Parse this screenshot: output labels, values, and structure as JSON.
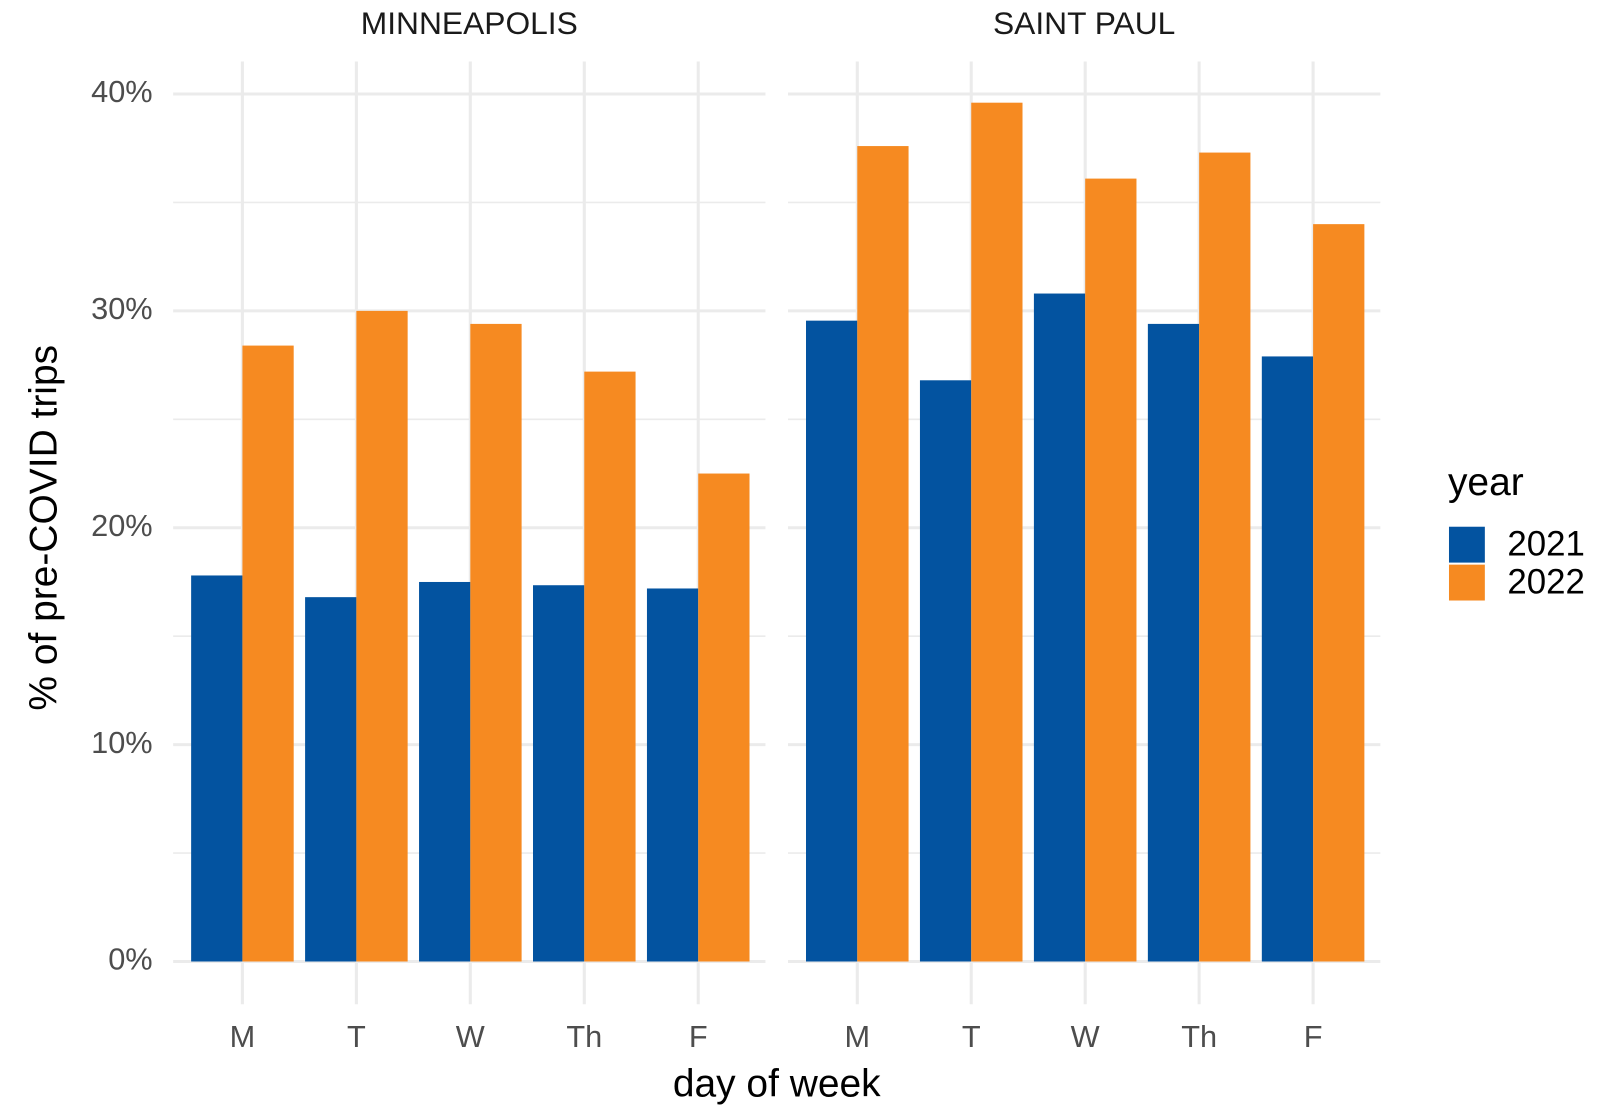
{
  "y_label": "% of pre-COVID trips",
  "x_label": "day of week",
  "legend": {
    "title": "year",
    "position": "right",
    "entries": [
      {
        "name": "2021",
        "color": "#0353a0"
      },
      {
        "name": "2022",
        "color": "#f68a21"
      }
    ]
  },
  "chart_data": [
    {
      "type": "bar",
      "title": "MINNEAPOLIS",
      "categories": [
        "M",
        "T",
        "W",
        "Th",
        "F"
      ],
      "series": [
        {
          "values": [
            17.8,
            16.8,
            17.5,
            17.35,
            17.2
          ]
        },
        {
          "values": [
            28.4,
            30.0,
            29.4,
            27.2,
            22.5
          ]
        }
      ],
      "ylim": [
        -1.5,
        41.5
      ],
      "yticks": [
        {
          "value": 0,
          "label": "0%"
        },
        {
          "value": 10,
          "label": "10%"
        },
        {
          "value": 20,
          "label": "20%"
        },
        {
          "value": 30,
          "label": "30%"
        },
        {
          "value": 40,
          "label": "40%"
        }
      ],
      "grid": true
    },
    {
      "type": "bar",
      "title": "SAINT PAUL",
      "categories": [
        "M",
        "T",
        "W",
        "Th",
        "F"
      ],
      "series": [
        {
          "values": [
            29.55,
            26.8,
            30.8,
            29.4,
            27.9
          ]
        },
        {
          "values": [
            37.6,
            39.6,
            36.1,
            37.3,
            34.0
          ]
        }
      ],
      "ylim": [
        -1.5,
        41.5
      ],
      "yticks": [
        {
          "value": 0,
          "label": "0%"
        },
        {
          "value": 10,
          "label": "10%"
        },
        {
          "value": 20,
          "label": "20%"
        },
        {
          "value": 30,
          "label": "30%"
        },
        {
          "value": 40,
          "label": "40%"
        }
      ],
      "grid": true
    }
  ]
}
